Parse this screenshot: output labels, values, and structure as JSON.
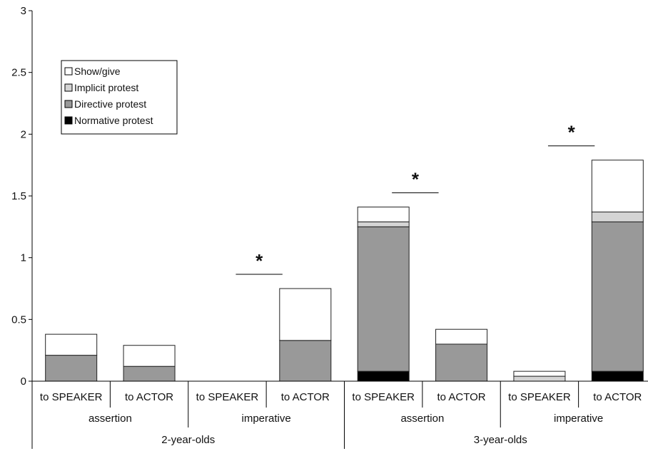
{
  "chart_data": {
    "type": "bar",
    "stacked": true,
    "categories": [
      "to SPEAKER",
      "to ACTOR",
      "to SPEAKER",
      "to ACTOR",
      "to SPEAKER",
      "to ACTOR",
      "to SPEAKER",
      "to ACTOR"
    ],
    "group_labels": [
      "assertion",
      "imperative",
      "assertion",
      "imperative"
    ],
    "age_labels": [
      "2-year-olds",
      "3-year-olds"
    ],
    "series": [
      {
        "name": "Normative protest",
        "color": "#000000",
        "values": [
          0,
          0,
          0,
          0,
          0.08,
          0,
          0,
          0.08
        ]
      },
      {
        "name": "Directive protest",
        "color": "#999999",
        "values": [
          0.21,
          0.12,
          0,
          0.33,
          1.17,
          0.3,
          0,
          1.21
        ]
      },
      {
        "name": "Implicit protest",
        "color": "#d4d4d4",
        "values": [
          0,
          0,
          0,
          0,
          0.04,
          0,
          0.04,
          0.08
        ]
      },
      {
        "name": "Show/give",
        "color": "#ffffff",
        "values": [
          0.17,
          0.17,
          0,
          0.42,
          0.12,
          0.12,
          0.04,
          0.42
        ]
      }
    ],
    "legend_order": [
      "Show/give",
      "Implicit protest",
      "Directive protest",
      "Normative protest"
    ],
    "yticks": [
      "0",
      "0.5",
      "1",
      "1.5",
      "2",
      "2.5",
      "3"
    ],
    "ylim": [
      0,
      3
    ],
    "grid": false,
    "legend_position": "top-left",
    "significance": [
      {
        "between": [
          2,
          3
        ],
        "label": "*"
      },
      {
        "between": [
          4,
          5
        ],
        "label": "*"
      },
      {
        "between": [
          6,
          7
        ],
        "label": "*"
      }
    ],
    "title": "",
    "xlabel": "",
    "ylabel": ""
  }
}
